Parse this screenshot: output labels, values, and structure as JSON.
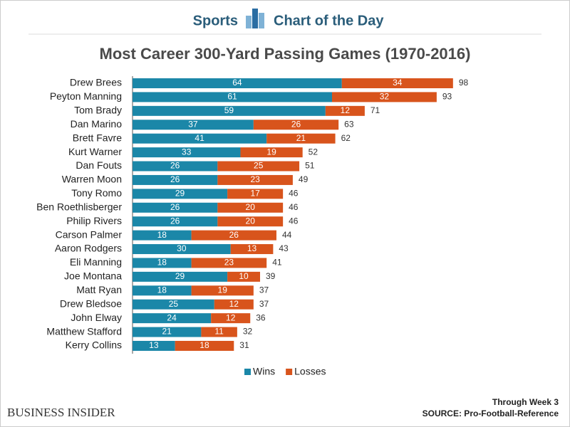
{
  "header": {
    "section": "Sports",
    "series_title": "Chart of the Day"
  },
  "chart_data": {
    "type": "stacked-bar-horizontal",
    "title": "Most Career 300-Yard Passing Games (1970-2016)",
    "categories": [
      "Drew Brees",
      "Peyton Manning",
      "Tom Brady",
      "Dan Marino",
      "Brett Favre",
      "Kurt Warner",
      "Dan Fouts",
      "Warren Moon",
      "Tony Romo",
      "Ben Roethlisberger",
      "Philip Rivers",
      "Carson Palmer",
      "Aaron Rodgers",
      "Eli Manning",
      "Joe Montana",
      "Matt Ryan",
      "Drew Bledsoe",
      "John Elway",
      "Matthew Stafford",
      "Kerry Collins"
    ],
    "series": [
      {
        "name": "Wins",
        "color": "#1b87a8",
        "values": [
          64,
          61,
          59,
          37,
          41,
          33,
          26,
          26,
          29,
          26,
          26,
          18,
          30,
          18,
          29,
          18,
          25,
          24,
          21,
          13
        ]
      },
      {
        "name": "Losses",
        "color": "#d8541c",
        "values": [
          34,
          32,
          12,
          26,
          21,
          19,
          25,
          23,
          17,
          20,
          20,
          26,
          13,
          23,
          10,
          19,
          12,
          12,
          11,
          18
        ]
      }
    ],
    "totals": [
      98,
      93,
      71,
      63,
      62,
      52,
      51,
      49,
      46,
      46,
      46,
      44,
      43,
      41,
      39,
      37,
      37,
      36,
      32,
      31
    ],
    "legend": "bottom"
  },
  "footer": {
    "brand": "BUSINESS INSIDER",
    "note": "Through Week 3",
    "source": "SOURCE: Pro-Football-Reference"
  }
}
